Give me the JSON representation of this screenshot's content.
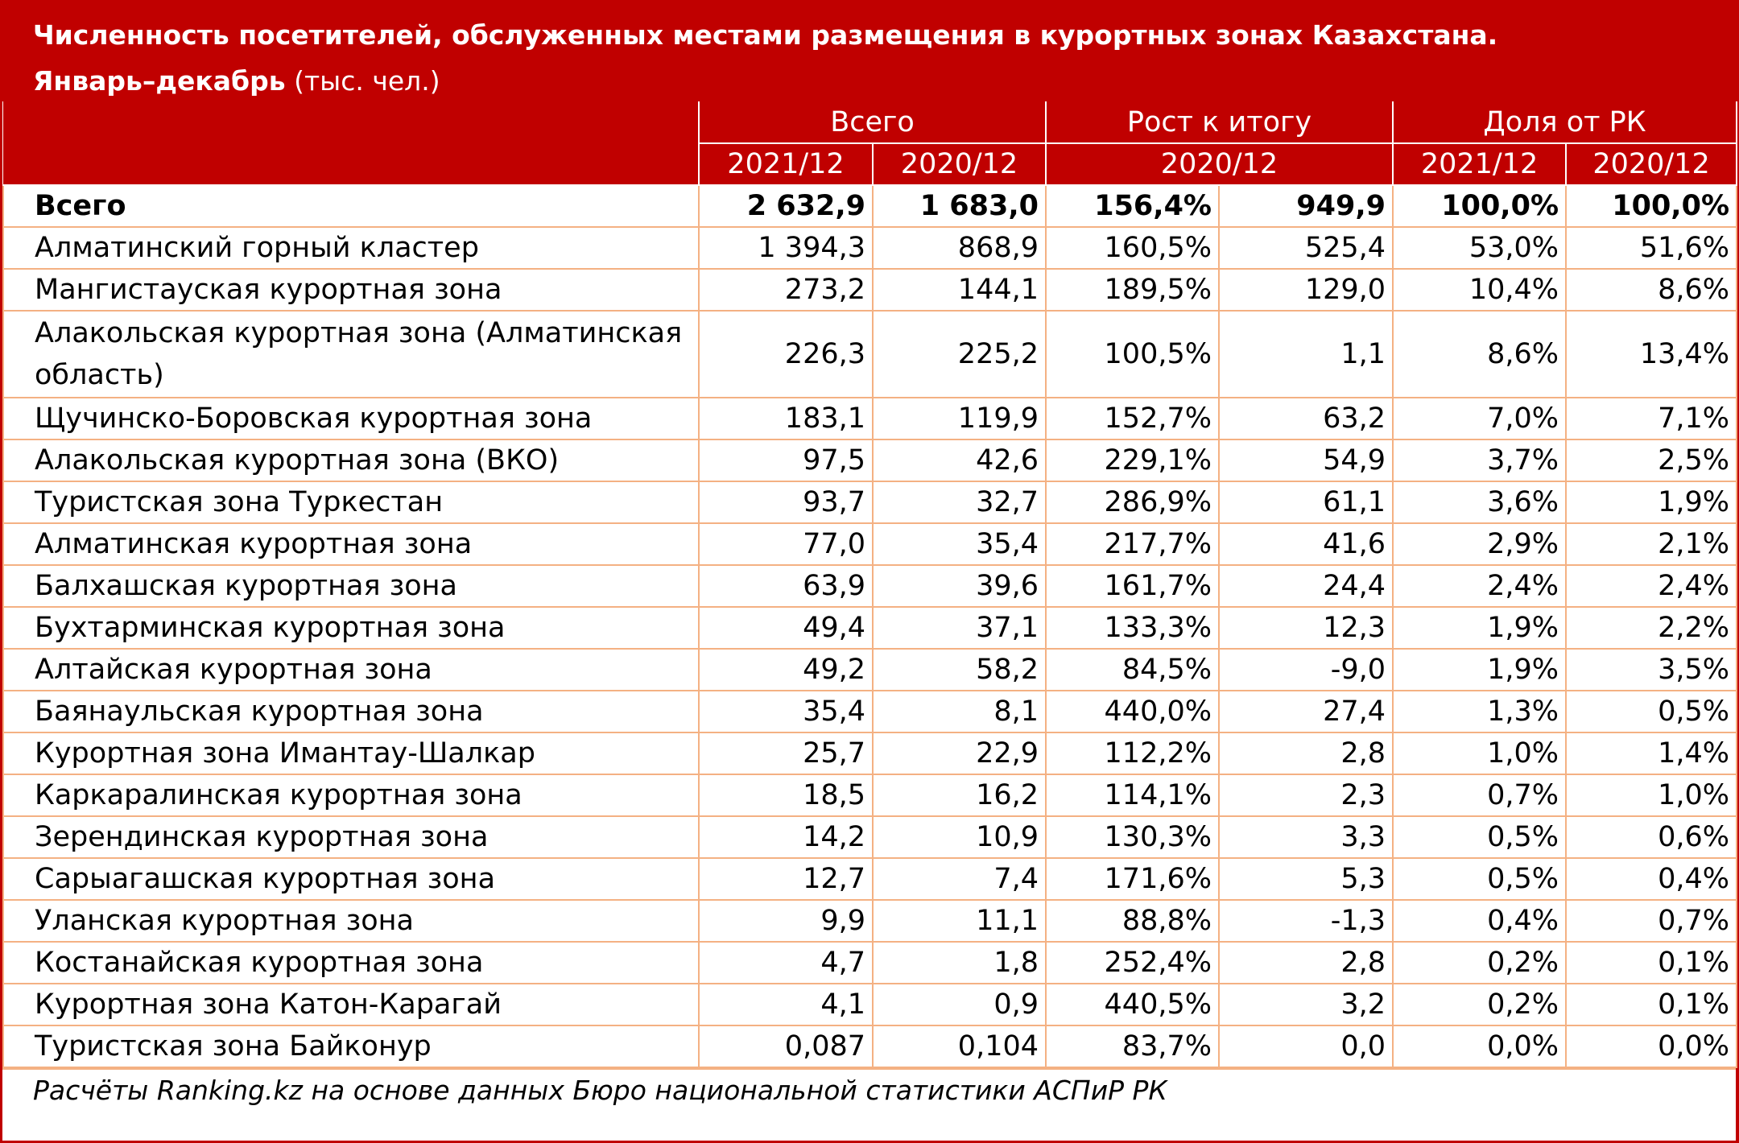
{
  "title": {
    "line1": "Численность посетителей, обслуженных местами размещения в курортных зонах Казахстана.",
    "line2_bold": "Январь–декабрь",
    "line2_unit": " (тыс. чел.)"
  },
  "header": {
    "group_total": "Всего",
    "group_growth": "Рост к итогу",
    "group_share": "Доля от РК",
    "sub_2021": "2021/12",
    "sub_2020": "2020/12",
    "sub_growth": "2020/12",
    "sub_share_2021": "2021/12",
    "sub_share_2020": "2020/12"
  },
  "rows": [
    {
      "name": "Всего",
      "v2021": "2 632,9",
      "v2020": "1 683,0",
      "growth_pct": "156,4%",
      "growth_abs": "949,9",
      "share2021": "100,0%",
      "share2020": "100,0%"
    },
    {
      "name": "Алматинский горный кластер",
      "v2021": "1 394,3",
      "v2020": "868,9",
      "growth_pct": "160,5%",
      "growth_abs": "525,4",
      "share2021": "53,0%",
      "share2020": "51,6%"
    },
    {
      "name": "Мангистауская курортная зона",
      "v2021": "273,2",
      "v2020": "144,1",
      "growth_pct": "189,5%",
      "growth_abs": "129,0",
      "share2021": "10,4%",
      "share2020": "8,6%"
    },
    {
      "name": "Алакольская курортная зона (Алматинская область)",
      "v2021": "226,3",
      "v2020": "225,2",
      "growth_pct": "100,5%",
      "growth_abs": "1,1",
      "share2021": "8,6%",
      "share2020": "13,4%"
    },
    {
      "name": "Щучинско-Боровская курортная зона",
      "v2021": "183,1",
      "v2020": "119,9",
      "growth_pct": "152,7%",
      "growth_abs": "63,2",
      "share2021": "7,0%",
      "share2020": "7,1%"
    },
    {
      "name": "Алакольская курортная зона (ВКО)",
      "v2021": "97,5",
      "v2020": "42,6",
      "growth_pct": "229,1%",
      "growth_abs": "54,9",
      "share2021": "3,7%",
      "share2020": "2,5%"
    },
    {
      "name": "Туристская зона Туркестан",
      "v2021": "93,7",
      "v2020": "32,7",
      "growth_pct": "286,9%",
      "growth_abs": "61,1",
      "share2021": "3,6%",
      "share2020": "1,9%"
    },
    {
      "name": "Алматинская курортная зона",
      "v2021": "77,0",
      "v2020": "35,4",
      "growth_pct": "217,7%",
      "growth_abs": "41,6",
      "share2021": "2,9%",
      "share2020": "2,1%"
    },
    {
      "name": "Балхашская курортная зона",
      "v2021": "63,9",
      "v2020": "39,6",
      "growth_pct": "161,7%",
      "growth_abs": "24,4",
      "share2021": "2,4%",
      "share2020": "2,4%"
    },
    {
      "name": "Бухтарминская курортная зона",
      "v2021": "49,4",
      "v2020": "37,1",
      "growth_pct": "133,3%",
      "growth_abs": "12,3",
      "share2021": "1,9%",
      "share2020": "2,2%"
    },
    {
      "name": "Алтайская курортная зона",
      "v2021": "49,2",
      "v2020": "58,2",
      "growth_pct": "84,5%",
      "growth_abs": "-9,0",
      "share2021": "1,9%",
      "share2020": "3,5%"
    },
    {
      "name": "Баянаульская курортная зона",
      "v2021": "35,4",
      "v2020": "8,1",
      "growth_pct": "440,0%",
      "growth_abs": "27,4",
      "share2021": "1,3%",
      "share2020": "0,5%"
    },
    {
      "name": "Курортная зона Имантау-Шалкар",
      "v2021": "25,7",
      "v2020": "22,9",
      "growth_pct": "112,2%",
      "growth_abs": "2,8",
      "share2021": "1,0%",
      "share2020": "1,4%"
    },
    {
      "name": "Каркаралинская курортная зона",
      "v2021": "18,5",
      "v2020": "16,2",
      "growth_pct": "114,1%",
      "growth_abs": "2,3",
      "share2021": "0,7%",
      "share2020": "1,0%"
    },
    {
      "name": "Зерендинская курортная зона",
      "v2021": "14,2",
      "v2020": "10,9",
      "growth_pct": "130,3%",
      "growth_abs": "3,3",
      "share2021": "0,5%",
      "share2020": "0,6%"
    },
    {
      "name": "Сарыагашская курортная зона",
      "v2021": "12,7",
      "v2020": "7,4",
      "growth_pct": "171,6%",
      "growth_abs": "5,3",
      "share2021": "0,5%",
      "share2020": "0,4%"
    },
    {
      "name": "Уланская курортная зона",
      "v2021": "9,9",
      "v2020": "11,1",
      "growth_pct": "88,8%",
      "growth_abs": "-1,3",
      "share2021": "0,4%",
      "share2020": "0,7%"
    },
    {
      "name": "Костанайская курортная зона",
      "v2021": "4,7",
      "v2020": "1,8",
      "growth_pct": "252,4%",
      "growth_abs": "2,8",
      "share2021": "0,2%",
      "share2020": "0,1%"
    },
    {
      "name": "Курортная зона Катон-Карагай",
      "v2021": "4,1",
      "v2020": "0,9",
      "growth_pct": "440,5%",
      "growth_abs": "3,2",
      "share2021": "0,2%",
      "share2020": "0,1%"
    },
    {
      "name": "Туристская зона Байконур",
      "v2021": "0,087",
      "v2020": "0,104",
      "growth_pct": "83,7%",
      "growth_abs": "0,0",
      "share2021": "0,0%",
      "share2020": "0,0%"
    }
  ],
  "source": "Расчёты Ranking.kz на основе данных Бюро национальной статистики АСПиР РК",
  "colors": {
    "header_bg": "#c00000",
    "grid": "#f4b183"
  }
}
